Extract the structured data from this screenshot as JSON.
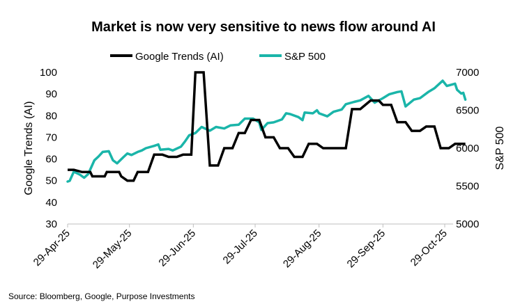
{
  "chart_data": {
    "type": "line",
    "title": "Market is now very sensitive to news flow around AI",
    "source": "Source: Bloomberg, Google, Purpose Investments",
    "legend_position": "top-center",
    "grid": false,
    "colors": {
      "google": "#000000",
      "sp500": "#1ab5a9"
    },
    "x_tick_labels": [
      "29-Apr-25",
      "29-May-25",
      "29-Jun-25",
      "29-Jul-25",
      "29-Aug-25",
      "29-Sep-25",
      "29-Oct-25"
    ],
    "x_range": [
      "2025-04-29",
      "2025-11-09"
    ],
    "y_left": {
      "label": "Google Trends (AI)",
      "range": [
        30,
        100
      ],
      "ticks": [
        "30",
        "40",
        "50",
        "60",
        "70",
        "80",
        "90",
        "100"
      ]
    },
    "y_right": {
      "label": "S&P 500",
      "range": [
        5000,
        7000
      ],
      "ticks": [
        "5000",
        "5500",
        "6000",
        "6500",
        "7000"
      ]
    },
    "series": [
      {
        "name": "Google Trends (AI)",
        "axis": "left",
        "points": [
          [
            "2025-04-29",
            55
          ],
          [
            "2025-05-02",
            55
          ],
          [
            "2025-05-06",
            54
          ],
          [
            "2025-05-10",
            54
          ],
          [
            "2025-05-11",
            52
          ],
          [
            "2025-05-17",
            52
          ],
          [
            "2025-05-18",
            54
          ],
          [
            "2025-05-24",
            54
          ],
          [
            "2025-05-25",
            52
          ],
          [
            "2025-05-28",
            50
          ],
          [
            "2025-05-31",
            50
          ],
          [
            "2025-06-02",
            54
          ],
          [
            "2025-06-07",
            54
          ],
          [
            "2025-06-10",
            62
          ],
          [
            "2025-06-14",
            62
          ],
          [
            "2025-06-17",
            61
          ],
          [
            "2025-06-21",
            61
          ],
          [
            "2025-06-24",
            62
          ],
          [
            "2025-06-28",
            62
          ],
          [
            "2025-06-30",
            100
          ],
          [
            "2025-07-04",
            100
          ],
          [
            "2025-07-07",
            57
          ],
          [
            "2025-07-11",
            57
          ],
          [
            "2025-07-14",
            65
          ],
          [
            "2025-07-18",
            65
          ],
          [
            "2025-07-21",
            72
          ],
          [
            "2025-07-24",
            72
          ],
          [
            "2025-07-27",
            78
          ],
          [
            "2025-07-31",
            78
          ],
          [
            "2025-08-03",
            70
          ],
          [
            "2025-08-07",
            70
          ],
          [
            "2025-08-10",
            65
          ],
          [
            "2025-08-14",
            65
          ],
          [
            "2025-08-17",
            61
          ],
          [
            "2025-08-21",
            61
          ],
          [
            "2025-08-24",
            67
          ],
          [
            "2025-08-28",
            67
          ],
          [
            "2025-08-31",
            65
          ],
          [
            "2025-09-11",
            65
          ],
          [
            "2025-09-14",
            83
          ],
          [
            "2025-09-18",
            83
          ],
          [
            "2025-09-23",
            87
          ],
          [
            "2025-09-27",
            87
          ],
          [
            "2025-09-29",
            85
          ],
          [
            "2025-10-03",
            85
          ],
          [
            "2025-10-06",
            77
          ],
          [
            "2025-10-10",
            77
          ],
          [
            "2025-10-13",
            73
          ],
          [
            "2025-10-17",
            73
          ],
          [
            "2025-10-20",
            75
          ],
          [
            "2025-10-24",
            75
          ],
          [
            "2025-10-27",
            65
          ],
          [
            "2025-10-31",
            65
          ],
          [
            "2025-11-03",
            67
          ],
          [
            "2025-11-08",
            67
          ]
        ]
      },
      {
        "name": "S&P 500",
        "axis": "right",
        "points": [
          [
            "2025-04-29",
            5560
          ],
          [
            "2025-04-30",
            5570
          ],
          [
            "2025-05-02",
            5690
          ],
          [
            "2025-05-05",
            5650
          ],
          [
            "2025-05-07",
            5610
          ],
          [
            "2025-05-09",
            5660
          ],
          [
            "2025-05-12",
            5840
          ],
          [
            "2025-05-14",
            5890
          ],
          [
            "2025-05-16",
            5950
          ],
          [
            "2025-05-19",
            5960
          ],
          [
            "2025-05-21",
            5840
          ],
          [
            "2025-05-23",
            5800
          ],
          [
            "2025-05-26",
            5880
          ],
          [
            "2025-05-28",
            5930
          ],
          [
            "2025-05-30",
            5910
          ],
          [
            "2025-06-02",
            5950
          ],
          [
            "2025-06-04",
            5970
          ],
          [
            "2025-06-06",
            6000
          ],
          [
            "2025-06-10",
            6030
          ],
          [
            "2025-06-12",
            6050
          ],
          [
            "2025-06-13",
            5980
          ],
          [
            "2025-06-17",
            5990
          ],
          [
            "2025-06-19",
            5970
          ],
          [
            "2025-06-23",
            6020
          ],
          [
            "2025-06-25",
            6090
          ],
          [
            "2025-06-27",
            6170
          ],
          [
            "2025-06-30",
            6200
          ],
          [
            "2025-07-03",
            6280
          ],
          [
            "2025-07-07",
            6230
          ],
          [
            "2025-07-10",
            6280
          ],
          [
            "2025-07-14",
            6260
          ],
          [
            "2025-07-17",
            6300
          ],
          [
            "2025-07-21",
            6310
          ],
          [
            "2025-07-24",
            6390
          ],
          [
            "2025-07-28",
            6390
          ],
          [
            "2025-07-31",
            6340
          ],
          [
            "2025-08-01",
            6240
          ],
          [
            "2025-08-04",
            6330
          ],
          [
            "2025-08-07",
            6340
          ],
          [
            "2025-08-11",
            6380
          ],
          [
            "2025-08-13",
            6460
          ],
          [
            "2025-08-15",
            6450
          ],
          [
            "2025-08-19",
            6410
          ],
          [
            "2025-08-21",
            6370
          ],
          [
            "2025-08-22",
            6470
          ],
          [
            "2025-08-26",
            6460
          ],
          [
            "2025-08-28",
            6500
          ],
          [
            "2025-08-29",
            6460
          ],
          [
            "2025-09-02",
            6420
          ],
          [
            "2025-09-05",
            6480
          ],
          [
            "2025-09-09",
            6510
          ],
          [
            "2025-09-11",
            6580
          ],
          [
            "2025-09-15",
            6610
          ],
          [
            "2025-09-18",
            6630
          ],
          [
            "2025-09-22",
            6690
          ],
          [
            "2025-09-25",
            6600
          ],
          [
            "2025-09-29",
            6660
          ],
          [
            "2025-10-02",
            6710
          ],
          [
            "2025-10-06",
            6740
          ],
          [
            "2025-10-08",
            6750
          ],
          [
            "2025-10-10",
            6550
          ],
          [
            "2025-10-14",
            6640
          ],
          [
            "2025-10-17",
            6660
          ],
          [
            "2025-10-21",
            6740
          ],
          [
            "2025-10-24",
            6790
          ],
          [
            "2025-10-28",
            6890
          ],
          [
            "2025-10-30",
            6820
          ],
          [
            "2025-11-03",
            6850
          ],
          [
            "2025-11-04",
            6770
          ],
          [
            "2025-11-06",
            6720
          ],
          [
            "2025-11-07",
            6730
          ],
          [
            "2025-11-08",
            6640
          ]
        ]
      }
    ]
  }
}
